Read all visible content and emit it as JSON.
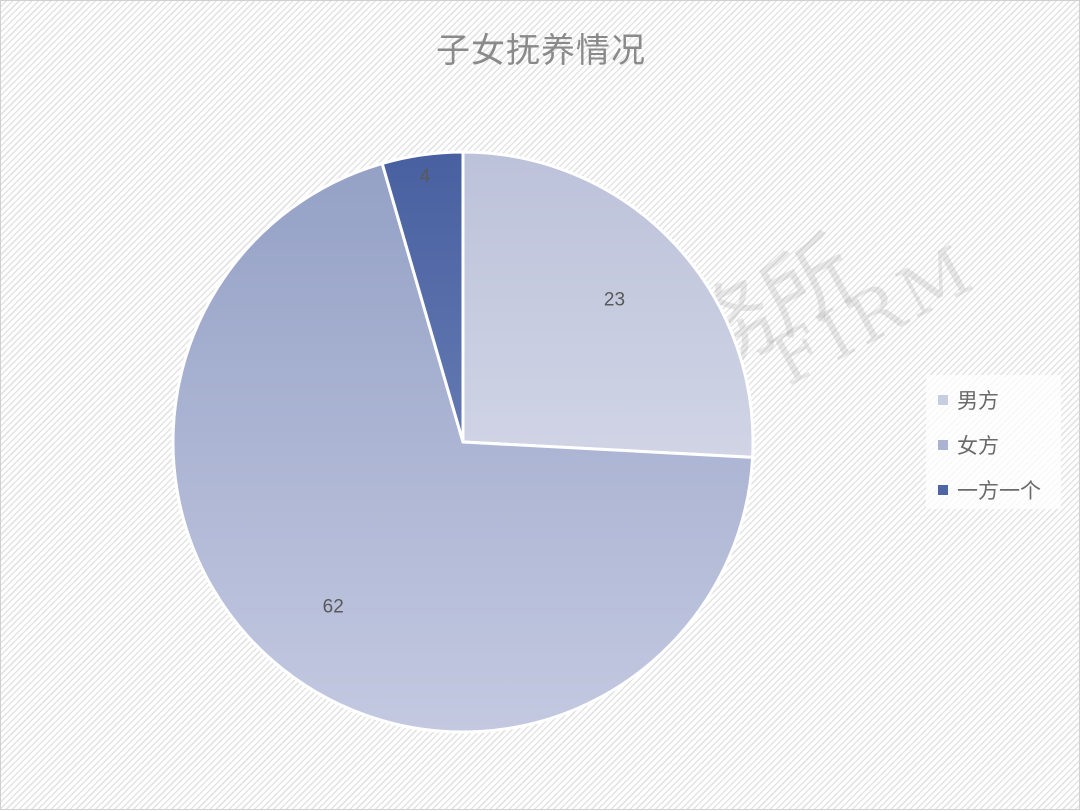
{
  "chart_data": {
    "type": "pie",
    "title": "子女抚养情况",
    "categories": [
      "男方",
      "女方",
      "一方一个"
    ],
    "values": [
      23,
      62,
      4
    ],
    "data_labels": [
      "23",
      "62",
      "4"
    ],
    "colors": [
      "#c9cde2",
      "#aab3d2",
      "#4e66a3"
    ],
    "start_angle": "12 o'clock, clockwise",
    "legend": "right"
  },
  "watermark": {
    "cn": "匯業律師事務所",
    "en": "HUI YE LAW FIRM"
  }
}
